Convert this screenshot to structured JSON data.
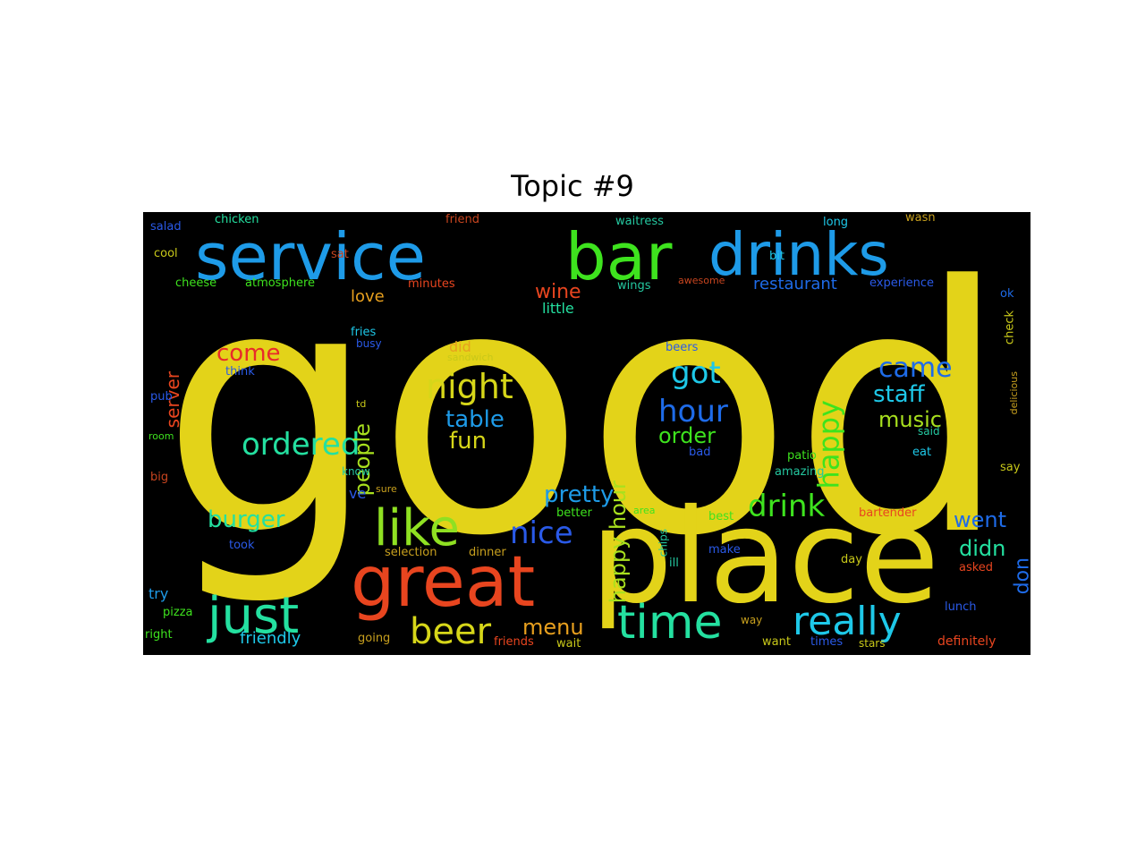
{
  "chart_data": {
    "type": "wordcloud",
    "title": "Topic #9",
    "background": "#000000",
    "words": [
      {
        "text": "good",
        "color": "#e3d319"
      },
      {
        "text": "place",
        "color": "#e3d319"
      },
      {
        "text": "great",
        "color": "#e8451f"
      },
      {
        "text": "service",
        "color": "#1e9be8"
      },
      {
        "text": "bar",
        "color": "#3ee31e"
      },
      {
        "text": "drinks",
        "color": "#1e9be8"
      },
      {
        "text": "just",
        "color": "#24e0a0"
      },
      {
        "text": "like",
        "color": "#8fe022"
      },
      {
        "text": "time",
        "color": "#24e0a0"
      },
      {
        "text": "really",
        "color": "#1ec8e8"
      },
      {
        "text": "beer",
        "color": "#d6d619"
      },
      {
        "text": "night",
        "color": "#d6d619"
      },
      {
        "text": "ordered",
        "color": "#24e0a0"
      },
      {
        "text": "hour",
        "color": "#1e6be8"
      },
      {
        "text": "got",
        "color": "#1ec8e8"
      },
      {
        "text": "came",
        "color": "#1e6be8"
      },
      {
        "text": "happy",
        "color": "#3ee31e"
      },
      {
        "text": "nice",
        "color": "#2a5ae8"
      },
      {
        "text": "drink",
        "color": "#3ee31e"
      },
      {
        "text": "burger",
        "color": "#24e0a0"
      },
      {
        "text": "staff",
        "color": "#1ec8e8"
      },
      {
        "text": "music",
        "color": "#a8e01e"
      },
      {
        "text": "table",
        "color": "#1e9be8"
      },
      {
        "text": "fun",
        "color": "#d6d619"
      },
      {
        "text": "pretty",
        "color": "#1e9be8"
      },
      {
        "text": "come",
        "color": "#e82a2a"
      },
      {
        "text": "people",
        "color": "#a8e01e"
      },
      {
        "text": "happy hour",
        "color": "#a8e01e"
      },
      {
        "text": "order",
        "color": "#3ee31e"
      },
      {
        "text": "went",
        "color": "#1e6be8"
      },
      {
        "text": "menu",
        "color": "#e8a01e"
      },
      {
        "text": "didn",
        "color": "#24e0a0"
      },
      {
        "text": "don",
        "color": "#1e6be8"
      },
      {
        "text": "wine",
        "color": "#e8451f"
      },
      {
        "text": "server",
        "color": "#e8451f"
      },
      {
        "text": "friendly",
        "color": "#1ec8e8"
      },
      {
        "text": "restaurant",
        "color": "#1e6be8"
      },
      {
        "text": "love",
        "color": "#e8a01e"
      },
      {
        "text": "little",
        "color": "#24e0a0"
      },
      {
        "text": "did",
        "color": "#e8a01e"
      },
      {
        "text": "try",
        "color": "#1e9be8"
      },
      {
        "text": "ve",
        "color": "#2a5ae8"
      },
      {
        "text": "selection",
        "color": "#c8a01e"
      },
      {
        "text": "dinner",
        "color": "#c8a01e"
      },
      {
        "text": "salad",
        "color": "#2a5ae8"
      },
      {
        "text": "chicken",
        "color": "#24e0a0"
      },
      {
        "text": "friend",
        "color": "#c8451f"
      },
      {
        "text": "waitress",
        "color": "#24c8a0"
      },
      {
        "text": "long",
        "color": "#1ec8e8"
      },
      {
        "text": "wasn",
        "color": "#c8a01e"
      },
      {
        "text": "cool",
        "color": "#c8c819"
      },
      {
        "text": "sat",
        "color": "#c8451f"
      },
      {
        "text": "bit",
        "color": "#1ec8e8"
      },
      {
        "text": "cheese",
        "color": "#3ee31e"
      },
      {
        "text": "atmosphere",
        "color": "#3ee31e"
      },
      {
        "text": "minutes",
        "color": "#e8451f"
      },
      {
        "text": "wings",
        "color": "#24c8a0"
      },
      {
        "text": "awesome",
        "color": "#c8451f"
      },
      {
        "text": "experience",
        "color": "#2a5ae8"
      },
      {
        "text": "ok",
        "color": "#1e6be8"
      },
      {
        "text": "fries",
        "color": "#1ec8e8"
      },
      {
        "text": "busy",
        "color": "#2a5ae8"
      },
      {
        "text": "sandwich",
        "color": "#c8c819"
      },
      {
        "text": "beers",
        "color": "#2a5ae8"
      },
      {
        "text": "check",
        "color": "#c8c819"
      },
      {
        "text": "think",
        "color": "#2a5ae8"
      },
      {
        "text": "pub",
        "color": "#2a5ae8"
      },
      {
        "text": "td",
        "color": "#c8c819"
      },
      {
        "text": "delicious",
        "color": "#c8a01e"
      },
      {
        "text": "room",
        "color": "#3ee31e"
      },
      {
        "text": "said",
        "color": "#24c8a0"
      },
      {
        "text": "eat",
        "color": "#1ec8e8"
      },
      {
        "text": "bad",
        "color": "#2a5ae8"
      },
      {
        "text": "patio",
        "color": "#3ee31e"
      },
      {
        "text": "big",
        "color": "#c8451f"
      },
      {
        "text": "know",
        "color": "#24c8a0"
      },
      {
        "text": "sure",
        "color": "#c8a01e"
      },
      {
        "text": "amazing",
        "color": "#24c8a0"
      },
      {
        "text": "say",
        "color": "#c8c819"
      },
      {
        "text": "better",
        "color": "#3ee31e"
      },
      {
        "text": "area",
        "color": "#3ee31e"
      },
      {
        "text": "best",
        "color": "#3ee31e"
      },
      {
        "text": "bartender",
        "color": "#e8451f"
      },
      {
        "text": "took",
        "color": "#2a5ae8"
      },
      {
        "text": "chips",
        "color": "#24c8a0"
      },
      {
        "text": "ill",
        "color": "#24c8a0"
      },
      {
        "text": "make",
        "color": "#2a5ae8"
      },
      {
        "text": "day",
        "color": "#c8c819"
      },
      {
        "text": "asked",
        "color": "#e8451f"
      },
      {
        "text": "pizza",
        "color": "#3ee31e"
      },
      {
        "text": "lunch",
        "color": "#2a5ae8"
      },
      {
        "text": "right",
        "color": "#3ee31e"
      },
      {
        "text": "going",
        "color": "#c8a01e"
      },
      {
        "text": "friends",
        "color": "#e8451f"
      },
      {
        "text": "wait",
        "color": "#c8c819"
      },
      {
        "text": "way",
        "color": "#c8a01e"
      },
      {
        "text": "want",
        "color": "#c8c819"
      },
      {
        "text": "times",
        "color": "#2a5ae8"
      },
      {
        "text": "stars",
        "color": "#c8c819"
      },
      {
        "text": "definitely",
        "color": "#e8451f"
      }
    ]
  }
}
